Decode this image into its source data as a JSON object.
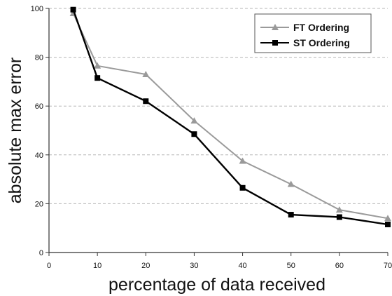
{
  "chart_data": {
    "type": "line",
    "title": "",
    "xlabel": "percentage of data received",
    "ylabel": "absolute max error",
    "xlim": [
      0,
      70
    ],
    "ylim": [
      0,
      100
    ],
    "xticks": [
      0,
      10,
      20,
      30,
      40,
      50,
      60,
      70
    ],
    "yticks": [
      0,
      20,
      40,
      60,
      80,
      100
    ],
    "xtick_labels": [
      "0",
      "10",
      "20",
      "30",
      "40",
      "50",
      "60",
      "70"
    ],
    "ytick_labels": [
      "0",
      "20",
      "40",
      "60",
      "80",
      "100"
    ],
    "grid": "horizontal dashed",
    "legend_position": "top-right",
    "series": [
      {
        "name": "FT Ordering",
        "color": "#9a9a9a",
        "marker": "triangle",
        "x": [
          5,
          10,
          20,
          30,
          40,
          50,
          60,
          70
        ],
        "y": [
          98,
          76.5,
          73,
          54,
          37.5,
          28,
          17.5,
          14
        ]
      },
      {
        "name": "ST Ordering",
        "color": "#000000",
        "marker": "square",
        "x": [
          5,
          10,
          20,
          30,
          40,
          50,
          60,
          70
        ],
        "y": [
          99.5,
          71.5,
          62,
          48.5,
          26.5,
          15.5,
          14.5,
          11.5
        ]
      }
    ]
  }
}
